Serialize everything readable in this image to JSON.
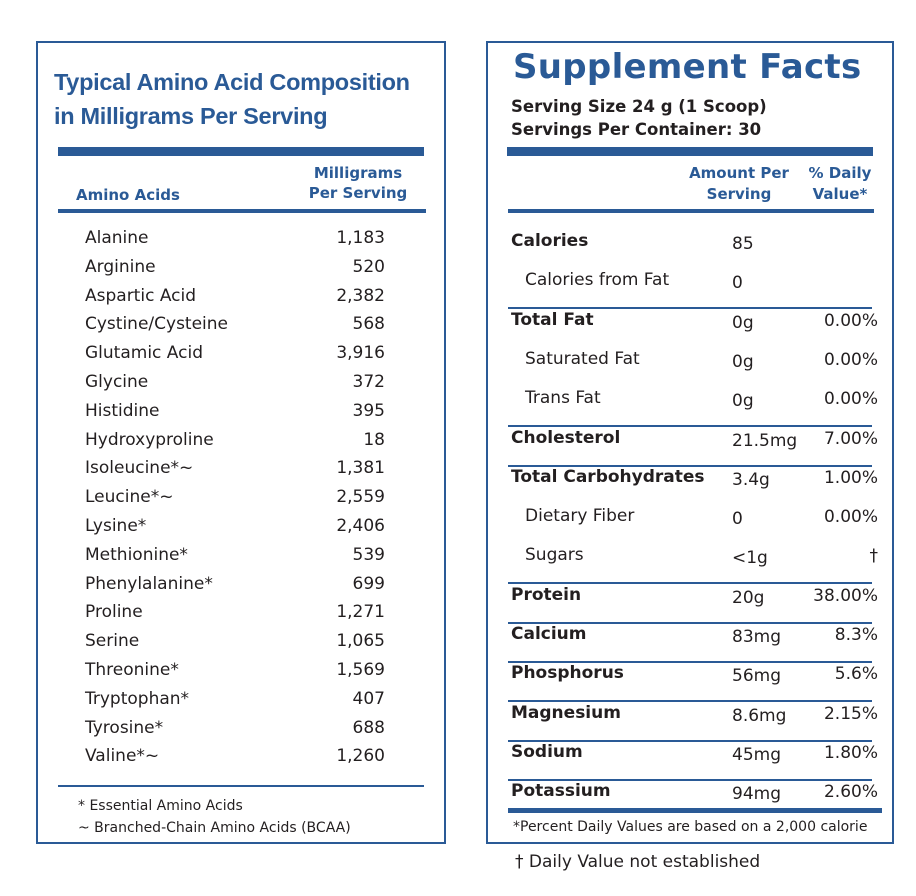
{
  "amino": {
    "title_line1": "Typical Amino Acid Composition",
    "title_line2": "in Milligrams Per Serving",
    "col_name": "Amino Acids",
    "col_value_line1": "Milligrams",
    "col_value_line2": "Per Serving",
    "rows": [
      {
        "name": "Alanine",
        "value": "1,183"
      },
      {
        "name": "Arginine",
        "value": "520"
      },
      {
        "name": "Aspartic Acid",
        "value": "2,382"
      },
      {
        "name": "Cystine/Cysteine",
        "value": "568"
      },
      {
        "name": "Glutamic Acid",
        "value": "3,916"
      },
      {
        "name": "Glycine",
        "value": "372"
      },
      {
        "name": "Histidine",
        "value": "395"
      },
      {
        "name": "Hydroxyproline",
        "value": "18"
      },
      {
        "name": "Isoleucine*~",
        "value": "1,381"
      },
      {
        "name": "Leucine*~",
        "value": "2,559"
      },
      {
        "name": "Lysine*",
        "value": "2,406"
      },
      {
        "name": "Methionine*",
        "value": "539"
      },
      {
        "name": "Phenylalanine*",
        "value": "699"
      },
      {
        "name": "Proline",
        "value": "1,271"
      },
      {
        "name": "Serine",
        "value": "1,065"
      },
      {
        "name": "Threonine*",
        "value": "1,569"
      },
      {
        "name": "Tryptophan*",
        "value": "407"
      },
      {
        "name": "Tyrosine*",
        "value": "688"
      },
      {
        "name": "Valine*~",
        "value": "1,260"
      }
    ],
    "footnote1": "* Essential Amino Acids",
    "footnote2": "~ Branched-Chain Amino Acids (BCAA)"
  },
  "facts": {
    "title": "Supplement Facts",
    "serving_size": "Serving Size 24 g (1 Scoop)",
    "servings_per_container": "Servings Per Container:  30",
    "col_amount_line1": "Amount Per",
    "col_amount_line2": "Serving",
    "col_dv_line1": "% Daily",
    "col_dv_line2": "Value*",
    "rows": [
      {
        "name": "Calories",
        "amount": "85",
        "dv": "",
        "bold": true,
        "divider": false
      },
      {
        "name": "Calories from Fat",
        "amount": "0",
        "dv": "",
        "bold": false,
        "divider": true
      },
      {
        "name": "Total Fat",
        "amount": "0g",
        "dv": "0.00%",
        "bold": true,
        "divider": false
      },
      {
        "name": "Saturated Fat",
        "amount": "0g",
        "dv": "0.00%",
        "bold": false,
        "divider": false
      },
      {
        "name": "Trans Fat",
        "amount": "0g",
        "dv": "0.00%",
        "bold": false,
        "divider": true
      },
      {
        "name": "Cholesterol",
        "amount": "21.5mg",
        "dv": "7.00%",
        "bold": true,
        "divider": true
      },
      {
        "name": "Total Carbohydrates",
        "amount": "3.4g",
        "dv": "1.00%",
        "bold": true,
        "divider": false
      },
      {
        "name": "Dietary Fiber",
        "amount": "0",
        "dv": "0.00%",
        "bold": false,
        "divider": false
      },
      {
        "name": "Sugars",
        "amount": "<1g",
        "dv": "†",
        "bold": false,
        "divider": true
      },
      {
        "name": "Protein",
        "amount": "20g",
        "dv": "38.00%",
        "bold": true,
        "divider": true
      },
      {
        "name": "Calcium",
        "amount": "83mg",
        "dv": "8.3%",
        "bold": true,
        "divider": true
      },
      {
        "name": "Phosphorus",
        "amount": "56mg",
        "dv": "5.6%",
        "bold": true,
        "divider": true
      },
      {
        "name": "Magnesium",
        "amount": "8.6mg",
        "dv": "2.15%",
        "bold": true,
        "divider": true
      },
      {
        "name": "Sodium",
        "amount": "45mg",
        "dv": "1.80%",
        "bold": true,
        "divider": true
      },
      {
        "name": "Potassium",
        "amount": "94mg",
        "dv": "2.60%",
        "bold": true,
        "divider": false
      }
    ],
    "footnote": "*Percent Daily Values are based on a 2,000 calorie",
    "dagger_note": "† Daily Value not established"
  }
}
